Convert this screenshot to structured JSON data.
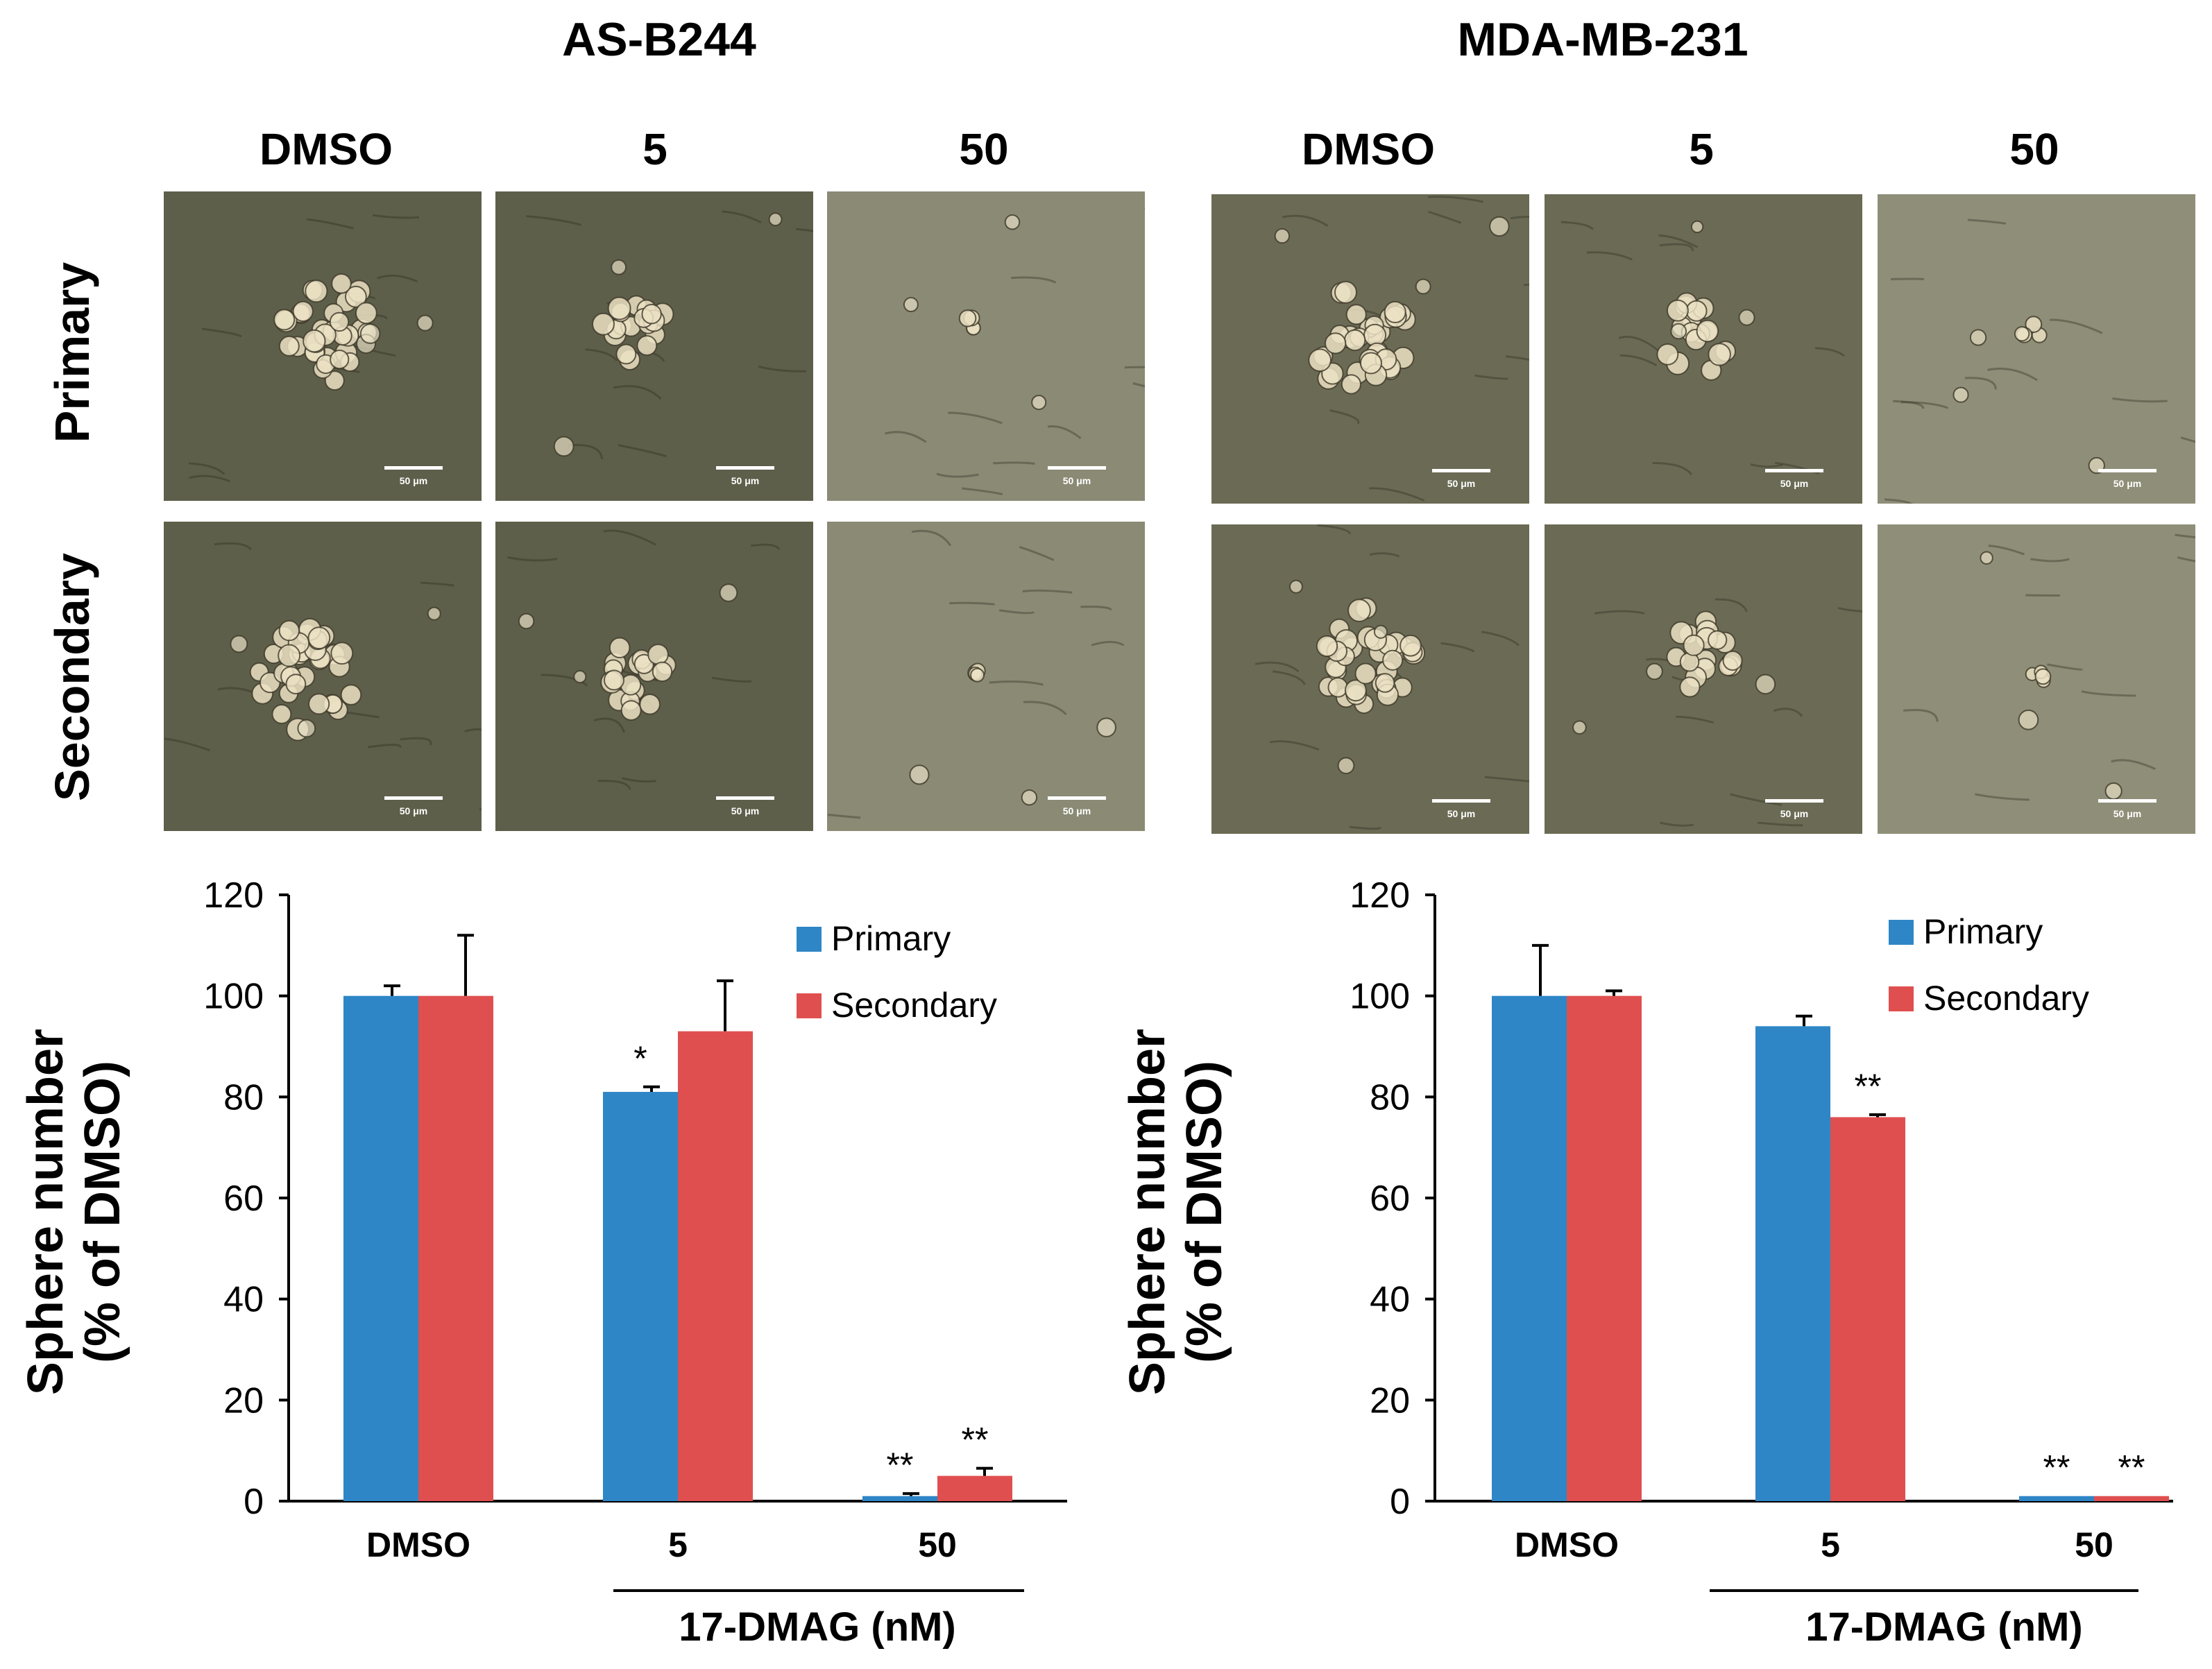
{
  "panels": [
    {
      "title": "AS-B244",
      "columns": [
        "DMSO",
        "5",
        "50"
      ],
      "rows": [
        "Primary",
        "Secondary"
      ],
      "micro_tint": "#5e5f4a",
      "micro_tint_light": "#8a8a75"
    },
    {
      "title": "MDA-MB-231",
      "columns": [
        "DMSO",
        "5",
        "50"
      ],
      "rows": [
        "Primary",
        "Secondary"
      ],
      "micro_tint": "#6b6b55",
      "micro_tint_light": "#8f8e78"
    }
  ],
  "scale_bar_label": "50 μm",
  "colors": {
    "primary": "#2e86c6",
    "secondary": "#e04f4f"
  },
  "chart_data": [
    {
      "type": "bar",
      "title": "AS-B244",
      "categories": [
        "DMSO",
        "5",
        "50"
      ],
      "series": [
        {
          "name": "Primary",
          "values": [
            100,
            81,
            1
          ],
          "errors": [
            2,
            1,
            0.5
          ]
        },
        {
          "name": "Secondary",
          "values": [
            100,
            93,
            5
          ],
          "errors": [
            12,
            10,
            1.5
          ]
        }
      ],
      "annotations": [
        {
          "category": "5",
          "series": "Primary",
          "text": "*"
        },
        {
          "category": "50",
          "series": "Primary",
          "text": "**"
        },
        {
          "category": "50",
          "series": "Secondary",
          "text": "**"
        }
      ],
      "ylabel_line1": "Sphere number",
      "ylabel_line2": "(% of DMSO)",
      "xlabel": "17-DMAG (nM)",
      "ylim": [
        0,
        120
      ],
      "yticks": [
        0,
        20,
        40,
        60,
        80,
        100,
        120
      ],
      "legend_position": "top-right"
    },
    {
      "type": "bar",
      "title": "MDA-MB-231",
      "categories": [
        "DMSO",
        "5",
        "50"
      ],
      "series": [
        {
          "name": "Primary",
          "values": [
            100,
            94,
            1
          ],
          "errors": [
            10,
            2,
            0
          ]
        },
        {
          "name": "Secondary",
          "values": [
            100,
            76,
            1
          ],
          "errors": [
            1,
            0.5,
            0
          ]
        }
      ],
      "annotations": [
        {
          "category": "5",
          "series": "Secondary",
          "text": "**"
        },
        {
          "category": "50",
          "series": "Primary",
          "text": "**"
        },
        {
          "category": "50",
          "series": "Secondary",
          "text": "**"
        }
      ],
      "ylabel_line1": "Sphere number",
      "ylabel_line2": "(% of DMSO)",
      "xlabel": "17-DMAG (nM)",
      "ylim": [
        0,
        120
      ],
      "yticks": [
        0,
        20,
        40,
        60,
        80,
        100,
        120
      ],
      "legend_position": "top-right"
    }
  ]
}
